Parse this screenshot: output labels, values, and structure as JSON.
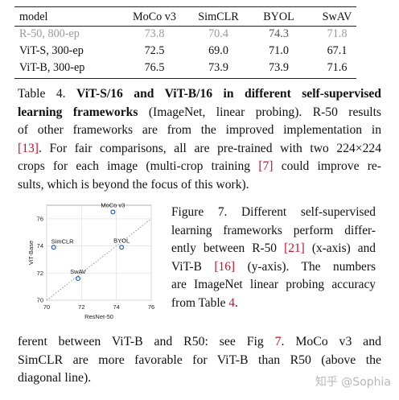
{
  "table": {
    "headers": [
      "model",
      "MoCo v3",
      "SimCLR",
      "BYOL",
      "SwAV"
    ],
    "rows": [
      {
        "model": "R-50, 800-ep",
        "values": [
          "73.8",
          "70.4",
          "74.3",
          "71.8"
        ],
        "bold_index": 2,
        "style": "gray"
      },
      {
        "model": "ViT-S, 300-ep",
        "values": [
          "72.5",
          "69.0",
          "71.0",
          "67.1"
        ],
        "bold_index": 0,
        "style": "normal"
      },
      {
        "model": "ViT-B, 300-ep",
        "values": [
          "76.5",
          "73.9",
          "73.9",
          "71.6"
        ],
        "bold_index": 0,
        "style": "normal"
      }
    ]
  },
  "caption": {
    "label": "Table 4.",
    "bold": "ViT-S/16 and ViT-B/16 in different self-supervised learning frameworks",
    "line1_a": "Table 4. ",
    "line1_b": "ViT-S/16 and ViT-B/16 in different self-supervised",
    "line2_a": "learning frameworks",
    "line2_b": " (ImageNet, linear probing).  R-50 results",
    "line3": "of other frameworks are from the improved implementation in",
    "line4_ref": "[13]",
    "line4_b": ". For fair comparisons, all are pre-trained with two 224×224",
    "line5_a": "crops for each image (multi-crop training ",
    "line5_ref": "[7]",
    "line5_b": " could improve re-",
    "line6": "sults, which is beyond the focus of this work)."
  },
  "figure_caption": {
    "l1": "Figure 7.   Different self-supervised",
    "l2": "learning frameworks perform differ-",
    "l3_a": "ently between R-50 ",
    "l3_ref": "[21]",
    "l3_b": " (x-axis) and",
    "l4_a": "ViT-B ",
    "l4_ref": "[16]",
    "l4_b": " (y-axis).   The numbers",
    "l5": "are ImageNet linear probing accuracy",
    "l6_a": "from Table ",
    "l6_ref": "4",
    "l6_b": "."
  },
  "body_text": {
    "l1_a": "ferent between ViT-B and R50: see Fig ",
    "l1_ref": "7",
    "l1_b": ". MoCo v3 and",
    "l2": "SimCLR are more favorable for ViT-B than R50 (above the",
    "l3": "diagonal line)."
  },
  "watermark": "知乎 @Sophia",
  "chart_data": {
    "type": "scatter",
    "xlabel": "ResNet-50",
    "ylabel": "ViT-Base",
    "xlim": [
      70,
      76
    ],
    "ylim": [
      70,
      77
    ],
    "xticks": [
      "70",
      "72",
      "74",
      "76"
    ],
    "yticks": [
      "70",
      "72",
      "74",
      "76"
    ],
    "points": [
      {
        "name": "MoCo v3",
        "x": 73.8,
        "y": 76.5
      },
      {
        "name": "SimCLR",
        "x": 70.4,
        "y": 73.9
      },
      {
        "name": "BYOL",
        "x": 74.3,
        "y": 73.9
      },
      {
        "name": "SwAV",
        "x": 71.8,
        "y": 71.6
      }
    ],
    "diagonal": true,
    "grid": true,
    "marker_color": "#1f5fbf"
  }
}
